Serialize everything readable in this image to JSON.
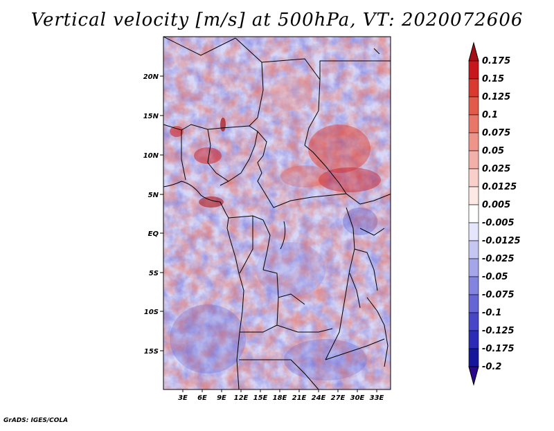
{
  "title": "Vertical velocity [m/s] at 500hPa, VT: 2020072606",
  "credit": "GrADS: IGES/COLA",
  "map": {
    "lon_min": 0,
    "lon_max": 35,
    "lat_min": -20,
    "lat_max": 24,
    "lon_ticks": [
      "3E",
      "6E",
      "9E",
      "12E",
      "15E",
      "18E",
      "21E",
      "24E",
      "27E",
      "30E",
      "33E"
    ],
    "lat_ticks": [
      "20N",
      "15N",
      "10N",
      "5N",
      "EQ",
      "5S",
      "10S",
      "15S"
    ]
  },
  "colorbar": {
    "labels": [
      "0.175",
      "0.15",
      "0.125",
      "0.1",
      "0.075",
      "0.05",
      "0.025",
      "0.0125",
      "0.005",
      "-0.005",
      "-0.0125",
      "-0.025",
      "-0.05",
      "-0.075",
      "-0.1",
      "-0.125",
      "-0.175",
      "-0.2"
    ],
    "colors": [
      "#a50f15",
      "#c8161d",
      "#d93a30",
      "#e25a4a",
      "#e8776a",
      "#ee9489",
      "#f3b0a8",
      "#f8cfc9",
      "#fce9e6",
      "#ffffff",
      "#e5e5fb",
      "#c6c6f3",
      "#a5a5ea",
      "#8383e0",
      "#6565d3",
      "#4646c6",
      "#2b2bb5",
      "#16169a",
      "#2a0a8a"
    ]
  }
}
